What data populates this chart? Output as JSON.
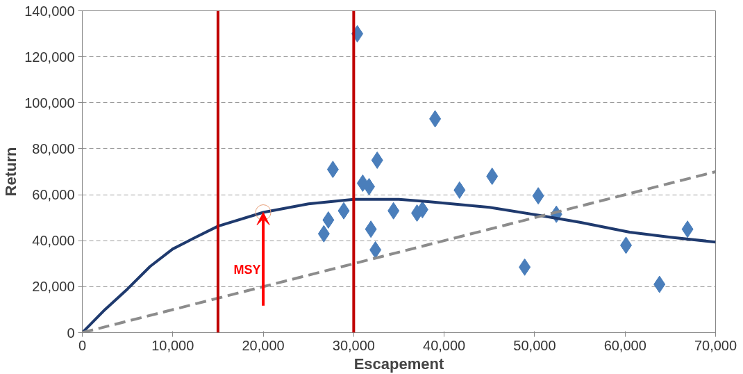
{
  "chart_data": {
    "type": "scatter",
    "xlabel": "Escapement",
    "ylabel": "Return",
    "xlim": [
      0,
      70000
    ],
    "ylim": [
      0,
      140000
    ],
    "xticks": [
      {
        "value": 0,
        "label": "0"
      },
      {
        "value": 10000,
        "label": "10,000"
      },
      {
        "value": 20000,
        "label": "20,000"
      },
      {
        "value": 30000,
        "label": "30,000"
      },
      {
        "value": 40000,
        "label": "40,000"
      },
      {
        "value": 50000,
        "label": "50,000"
      },
      {
        "value": 60000,
        "label": "60,000"
      },
      {
        "value": 70000,
        "label": "70,000"
      }
    ],
    "yticks": [
      {
        "value": 0,
        "label": "0"
      },
      {
        "value": 20000,
        "label": "20,000"
      },
      {
        "value": 40000,
        "label": "40,000"
      },
      {
        "value": 60000,
        "label": "60,000"
      },
      {
        "value": 80000,
        "label": "80,000"
      },
      {
        "value": 100000,
        "label": "100,000"
      },
      {
        "value": 120000,
        "label": "120,000"
      },
      {
        "value": 140000,
        "label": "140,000"
      }
    ],
    "grid": "y",
    "series": [
      {
        "marker": "diamond",
        "color": "#4a7ebb",
        "x": [
          30400,
          39000,
          27700,
          32600,
          31000,
          31700,
          41700,
          45300,
          50400,
          28900,
          27200,
          26700,
          34400,
          37000,
          37600,
          31900,
          32400,
          52400,
          48900,
          60100,
          63800,
          66900
        ],
        "values": [
          130000,
          93000,
          71000,
          75000,
          65000,
          63500,
          62000,
          68000,
          59500,
          53000,
          49000,
          43000,
          53000,
          52000,
          53500,
          45000,
          36000,
          51500,
          28500,
          38000,
          21000,
          45000
        ]
      },
      {
        "type": "line",
        "marker": "none",
        "line_style": "solid",
        "color": "#1f3a6e",
        "x": [
          0,
          2500,
          5000,
          7500,
          10000,
          12500,
          15000,
          20000,
          25000,
          30000,
          35000,
          38200,
          45000,
          50500,
          55000,
          60500,
          65000,
          70000
        ],
        "values": [
          0,
          10000,
          19000,
          28800,
          36400,
          41400,
          46300,
          52300,
          56000,
          58000,
          58000,
          57000,
          54500,
          51000,
          48000,
          43700,
          41500,
          39400
        ]
      },
      {
        "type": "line",
        "marker": "none",
        "line_style": "dashed",
        "color": "#8c8c8c",
        "x": [
          0,
          70000
        ],
        "values": [
          0,
          70000
        ]
      }
    ],
    "ref_lines": [
      {
        "axis": "x",
        "value": 15000,
        "color": "#c00000"
      },
      {
        "axis": "x",
        "value": 30000,
        "color": "#c00000"
      }
    ],
    "annotations": [
      "MSY"
    ]
  }
}
